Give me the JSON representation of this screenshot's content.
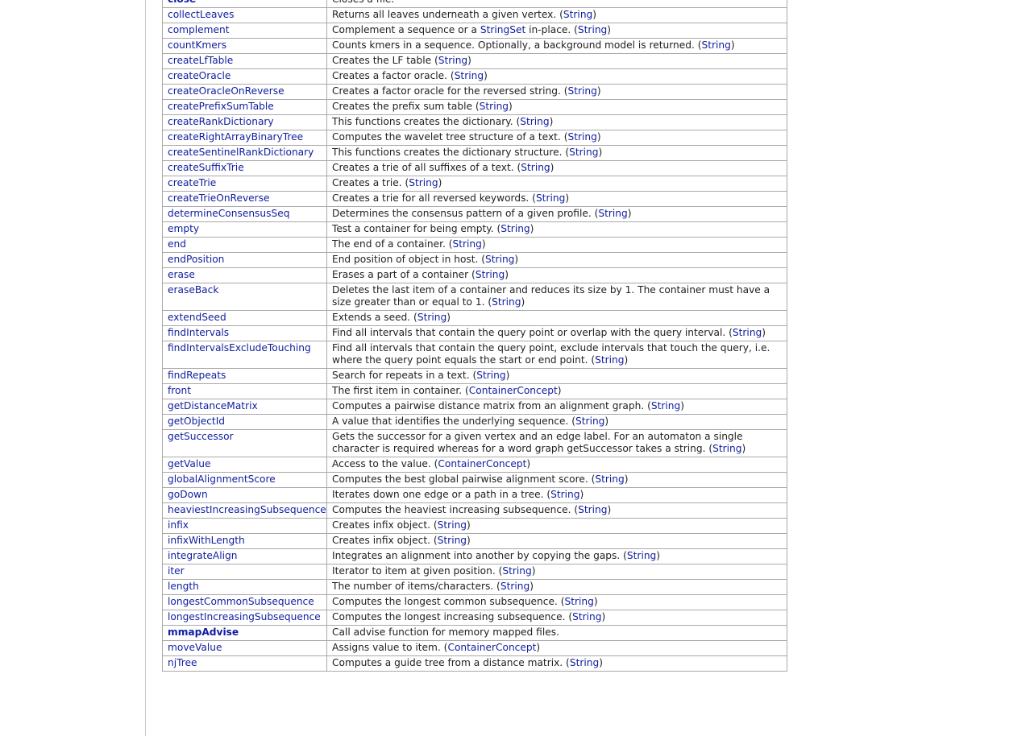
{
  "rows": [
    {
      "name": "close",
      "bold": true,
      "desc": "Closes a file.",
      "type": null
    },
    {
      "name": "collectLeaves",
      "desc": "Returns all leaves underneath a given vertex.",
      "type": "String"
    },
    {
      "name": "complement",
      "desc_parts": [
        "Complement a sequence or a ",
        "StringSet",
        " in-place."
      ],
      "type": "String"
    },
    {
      "name": "countKmers",
      "desc": "Counts kmers in a sequence. Optionally, a background model is returned.",
      "type": "String"
    },
    {
      "name": "createLfTable",
      "desc": "Creates the LF table",
      "type": "String"
    },
    {
      "name": "createOracle",
      "desc": "Creates a factor oracle.",
      "type": "String"
    },
    {
      "name": "createOracleOnReverse",
      "desc": "Creates a factor oracle for the reversed string.",
      "type": "String"
    },
    {
      "name": "createPrefixSumTable",
      "desc": "Creates the prefix sum table",
      "type": "String"
    },
    {
      "name": "createRankDictionary",
      "desc": "This functions creates the dictionary.",
      "type": "String"
    },
    {
      "name": "createRightArrayBinaryTree",
      "desc": "Computes the wavelet tree structure of a text.",
      "type": "String"
    },
    {
      "name": "createSentinelRankDictionary",
      "desc": "This functions creates the dictionary structure.",
      "type": "String"
    },
    {
      "name": "createSuffixTrie",
      "desc": "Creates a trie of all suffixes of a text.",
      "type": "String"
    },
    {
      "name": "createTrie",
      "desc": "Creates a trie.",
      "type": "String"
    },
    {
      "name": "createTrieOnReverse",
      "desc": "Creates a trie for all reversed keywords.",
      "type": "String"
    },
    {
      "name": "determineConsensusSeq",
      "desc": "Determines the consensus pattern of a given profile.",
      "type": "String"
    },
    {
      "name": "empty",
      "desc": "Test a container for being empty.",
      "type": "String"
    },
    {
      "name": "end",
      "desc": "The end of a container.",
      "type": "String"
    },
    {
      "name": "endPosition",
      "desc": "End position of object in host.",
      "type": "String"
    },
    {
      "name": "erase",
      "desc": "Erases a part of a container",
      "type": "String"
    },
    {
      "name": "eraseBack",
      "desc": "Deletes the last item of a container and reduces its size by 1. The container must have a size greater than or equal to 1.",
      "type": "String"
    },
    {
      "name": "extendSeed",
      "desc": "Extends a seed.",
      "type": "String"
    },
    {
      "name": "findIntervals",
      "desc": "Find all intervals that contain the query point or overlap with the query interval.",
      "type": "String"
    },
    {
      "name": "findIntervalsExcludeTouching",
      "desc": "Find all intervals that contain the query point, exclude intervals that touch the query, i.e. where the query point equals the start or end point.",
      "type": "String"
    },
    {
      "name": "findRepeats",
      "desc": "Search for repeats in a text.",
      "type": "String"
    },
    {
      "name": "front",
      "desc": "The first item in container.",
      "type": "ContainerConcept"
    },
    {
      "name": "getDistanceMatrix",
      "desc": "Computes a pairwise distance matrix from an alignment graph.",
      "type": "String"
    },
    {
      "name": "getObjectId",
      "desc": "A value that identifies the underlying sequence.",
      "type": "String"
    },
    {
      "name": "getSuccessor",
      "desc": "Gets the successor for a given vertex and an edge label. For an automaton a single character is required whereas for a word graph getSuccessor takes a string.",
      "type": "String"
    },
    {
      "name": "getValue",
      "desc": "Access to the value.",
      "type": "ContainerConcept"
    },
    {
      "name": "globalAlignmentScore",
      "desc": "Computes the best global pairwise alignment score.",
      "type": "String"
    },
    {
      "name": "goDown",
      "desc": "Iterates down one edge or a path in a tree.",
      "type": "String"
    },
    {
      "name": "heaviestIncreasingSubsequence",
      "desc": "Computes the heaviest increasing subsequence.",
      "type": "String"
    },
    {
      "name": "infix",
      "desc": "Creates infix object.",
      "type": "String"
    },
    {
      "name": "infixWithLength",
      "desc": "Creates infix object.",
      "type": "String"
    },
    {
      "name": "integrateAlign",
      "desc": "Integrates an alignment into another by copying the gaps.",
      "type": "String"
    },
    {
      "name": "iter",
      "desc": "Iterator to item at given position.",
      "type": "String"
    },
    {
      "name": "length",
      "desc": "The number of items/characters.",
      "type": "String"
    },
    {
      "name": "longestCommonSubsequence",
      "desc": "Computes the longest common subsequence.",
      "type": "String"
    },
    {
      "name": "longestIncreasingSubsequence",
      "desc": "Computes the longest increasing subsequence.",
      "type": "String"
    },
    {
      "name": "mmapAdvise",
      "bold": true,
      "desc": "Call advise function for memory mapped files.",
      "type": null
    },
    {
      "name": "moveValue",
      "desc": "Assigns value to item.",
      "type": "ContainerConcept"
    },
    {
      "name": "njTree",
      "desc": "Computes a guide tree from a distance matrix.",
      "type": "String"
    }
  ]
}
